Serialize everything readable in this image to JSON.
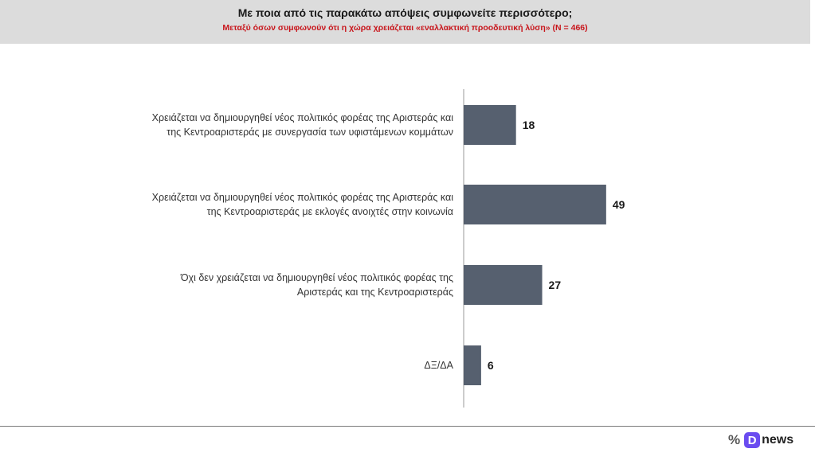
{
  "header": {
    "title": "Με ποια από τις παρακάτω απόψεις συμφωνείτε περισσότερο;",
    "subtitle": "Μεταξύ όσων συμφωνούν ότι η χώρα χρειάζεται «εναλλακτική προοδευτική λύση» (Ν = 466)"
  },
  "brand": {
    "percent_glyph": "%",
    "logo_letter": "D",
    "logo_text": "news",
    "accent_color": "#6a4cf0"
  },
  "chart_data": {
    "type": "bar",
    "orientation": "horizontal",
    "categories": [
      [
        "Χρειάζεται να δημιουργηθεί νέος πολιτικός φορέας της Αριστεράς και",
        "της Κεντροαριστεράς με συνεργασία των υφιστάμενων κομμάτων"
      ],
      [
        "Χρειάζεται να δημιουργηθεί νέος πολιτικός φορέας της Αριστεράς και",
        "της Κεντροαριστεράς με εκλογές ανοιχτές στην κοινωνία"
      ],
      [
        "Όχι δεν χρειάζεται να δημιουργηθεί νέος πολιτικός φορέας της",
        "Αριστεράς και της Κεντροαριστεράς"
      ],
      [
        "ΔΞ/ΔΑ"
      ]
    ],
    "values": [
      18,
      49,
      27,
      6
    ],
    "bar_color": "#56606f",
    "grid": false,
    "data_labels": true
  }
}
